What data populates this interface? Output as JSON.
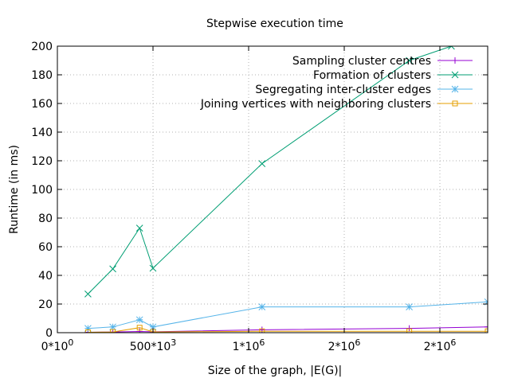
{
  "chart_data": {
    "type": "line",
    "title": "Stepwise execution time",
    "xlabel": "Size of the graph, |E(G)|",
    "ylabel": "Runtime (in ms)",
    "xlim": [
      0,
      2250000
    ],
    "ylim": [
      0,
      200
    ],
    "grid": true,
    "legend_position": "top-right",
    "xticks": [
      {
        "value": 0,
        "label": "0*10^0"
      },
      {
        "value": 500000,
        "label": "500*10^3"
      },
      {
        "value": 1000000,
        "label": "1*10^6"
      },
      {
        "value": 1500000,
        "label": "2*10^6"
      },
      {
        "value": 2000000,
        "label": "2*10^6"
      }
    ],
    "yticks": [
      0,
      20,
      40,
      60,
      80,
      100,
      120,
      140,
      160,
      180,
      200
    ],
    "series": [
      {
        "name": "Sampling cluster centres",
        "color": "#9400d3",
        "marker": "plus",
        "x": [
          160000,
          290000,
          430000,
          500000,
          1070000,
          1840000,
          2250000
        ],
        "y": [
          0.3,
          0.5,
          0.8,
          0.6,
          2,
          3,
          4
        ]
      },
      {
        "name": "Formation of clusters",
        "color": "#009e73",
        "marker": "cross",
        "x": [
          160000,
          290000,
          430000,
          500000,
          1070000,
          1840000,
          2060000
        ],
        "y": [
          27,
          44.5,
          73,
          45,
          118,
          190,
          200
        ]
      },
      {
        "name": "Segregating inter-cluster edges",
        "color": "#56b4e9",
        "marker": "star",
        "x": [
          160000,
          290000,
          430000,
          500000,
          1070000,
          1840000,
          2250000
        ],
        "y": [
          3,
          4,
          9,
          4,
          18,
          18,
          21.5
        ]
      },
      {
        "name": "Joining vertices with neighboring clusters",
        "color": "#e69f00",
        "marker": "square",
        "x": [
          160000,
          290000,
          430000,
          500000,
          1070000,
          1840000,
          2250000
        ],
        "y": [
          0.3,
          0.5,
          3.5,
          0.5,
          1,
          1,
          1
        ]
      }
    ]
  }
}
